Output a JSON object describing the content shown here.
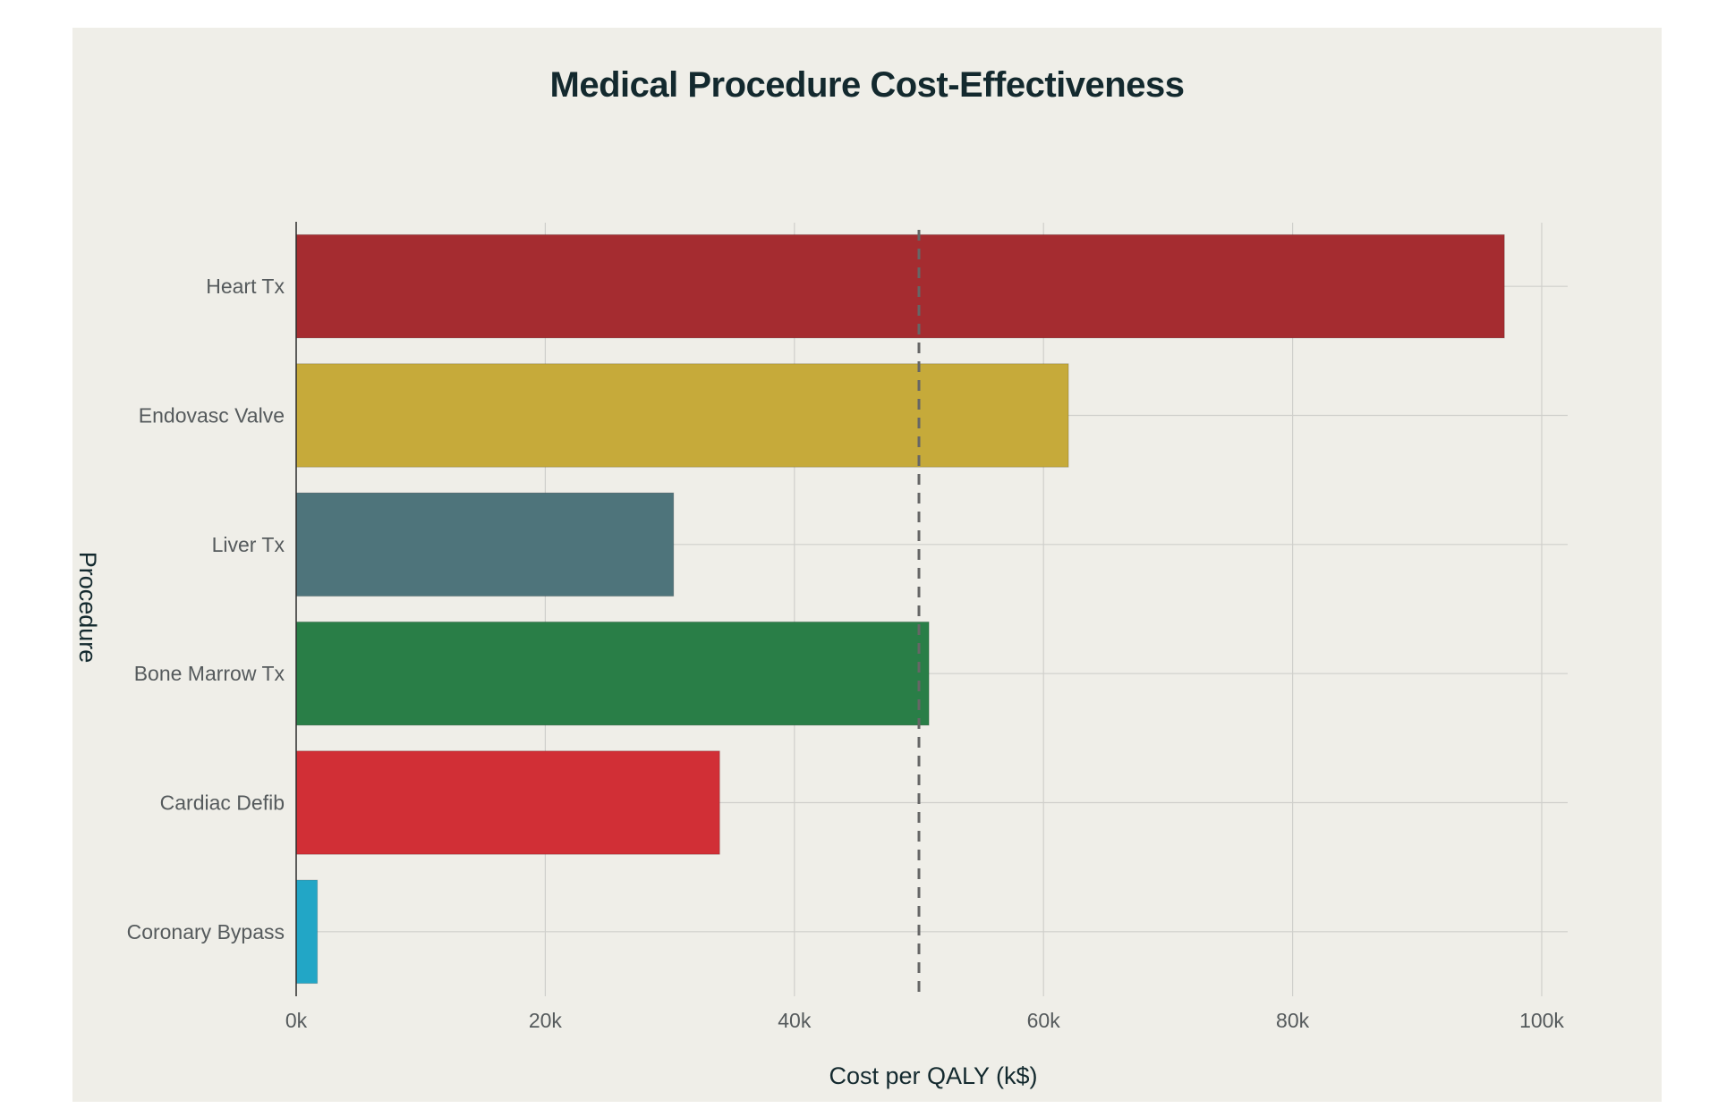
{
  "chart_data": {
    "type": "bar",
    "orientation": "horizontal",
    "title": "Medical Procedure Cost-Effectiveness",
    "xlabel": "Cost per QALY (k$)",
    "ylabel": "Procedure",
    "categories": [
      "Heart Tx",
      "Endovasc Valve",
      "Liver Tx",
      "Bone Marrow Tx",
      "Cardiac Defib",
      "Coronary Bypass"
    ],
    "values": [
      97000,
      62000,
      30300,
      50800,
      34000,
      1700
    ],
    "colors": [
      "#a52c30",
      "#c6aa3a",
      "#4e747b",
      "#297e47",
      "#d12f36",
      "#22a6c6"
    ],
    "xlim": [
      0,
      102000
    ],
    "xticks": [
      0,
      20000,
      40000,
      60000,
      80000,
      100000
    ],
    "xtick_labels": [
      "0k",
      "20k",
      "40k",
      "60k",
      "80k",
      "100k"
    ],
    "reference_line": {
      "x": 50000,
      "style": "dashed",
      "color": "#666666"
    },
    "grid": true
  }
}
